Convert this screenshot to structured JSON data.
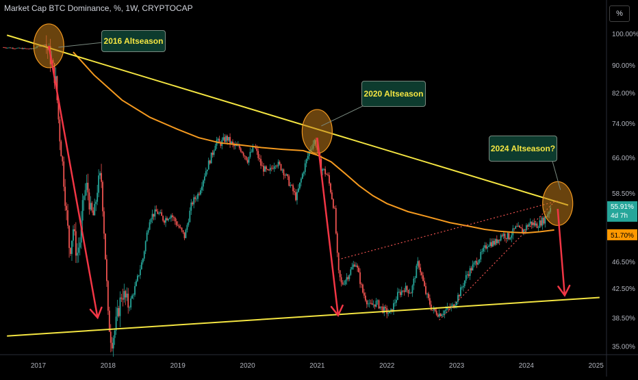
{
  "header": {
    "title": "Market Cap BTC Dominance, %, 1W, CRYPTOCAP",
    "unit_button": "%"
  },
  "colors": {
    "background": "#000000",
    "candle_up": "#26a69a",
    "candle_down": "#ef5350",
    "trendline": "#f5e642",
    "moving_average": "#f59a1f",
    "arrow": "#f23645",
    "circle_fill": "#c07a1a",
    "callout_bg": "#0d3b2e",
    "callout_text": "#f5e642",
    "current_badge": "#26a69a",
    "ma_badge": "#ff9800"
  },
  "annotations": {
    "callout_2016": "2016 Altseason",
    "callout_2020": "2020 Altseason",
    "callout_2024": "2024 Altseason?"
  },
  "badges": {
    "current_price": "55.91%",
    "countdown": "4d 7h",
    "ma_value": "51.70%"
  },
  "chart_data": {
    "type": "candlestick",
    "title": "Market Cap BTC Dominance, %, 1W, CRYPTOCAP",
    "x_axis_ticks": [
      "2017",
      "2018",
      "2019",
      "2020",
      "2021",
      "2022",
      "2023",
      "2024",
      "2025"
    ],
    "y_axis_ticks": [
      "100.00%",
      "90.00%",
      "82.00%",
      "74.00%",
      "66.00%",
      "58.50%",
      "46.50%",
      "42.50%",
      "38.50%",
      "35.00%"
    ],
    "y_scale": "log",
    "xlim": [
      2016.45,
      2025.15
    ],
    "ylim": [
      34.0,
      105.0
    ],
    "series": [
      {
        "name": "BTC Dominance",
        "type": "close",
        "x": [
          2016.5,
          2016.7,
          2016.9,
          2017.0,
          2017.1,
          2017.15,
          2017.2,
          2017.25,
          2017.3,
          2017.35,
          2017.4,
          2017.45,
          2017.5,
          2017.55,
          2017.6,
          2017.65,
          2017.7,
          2017.75,
          2017.8,
          2017.85,
          2017.9,
          2017.95,
          2018.0,
          2018.05,
          2018.1,
          2018.2,
          2018.3,
          2018.4,
          2018.5,
          2018.6,
          2018.7,
          2018.8,
          2018.9,
          2019.0,
          2019.1,
          2019.2,
          2019.3,
          2019.4,
          2019.5,
          2019.55,
          2019.6,
          2019.7,
          2019.8,
          2019.9,
          2020.0,
          2020.1,
          2020.2,
          2020.3,
          2020.4,
          2020.5,
          2020.6,
          2020.7,
          2020.8,
          2020.9,
          2020.97,
          2021.05,
          2021.15,
          2021.25,
          2021.3,
          2021.35,
          2021.45,
          2021.55,
          2021.65,
          2021.75,
          2021.85,
          2021.95,
          2022.05,
          2022.15,
          2022.25,
          2022.35,
          2022.45,
          2022.55,
          2022.65,
          2022.75,
          2022.85,
          2022.95,
          2023.05,
          2023.15,
          2023.25,
          2023.35,
          2023.45,
          2023.55,
          2023.65,
          2023.75,
          2023.85,
          2023.95,
          2024.05,
          2024.15,
          2024.25,
          2024.3,
          2024.35
        ],
        "values": [
          95.5,
          95.2,
          95.0,
          95.8,
          96.5,
          94.0,
          90.0,
          85.0,
          72.0,
          64.0,
          55.0,
          48.0,
          52.0,
          47.5,
          50.0,
          58.0,
          60.0,
          55.0,
          54.0,
          60.0,
          62.0,
          50.0,
          38.5,
          35.5,
          37.0,
          42.0,
          40.0,
          43.0,
          47.0,
          54.0,
          55.0,
          53.5,
          54.5,
          52.5,
          50.5,
          56.5,
          58.5,
          63.0,
          67.0,
          70.0,
          69.0,
          70.5,
          68.5,
          68.0,
          65.5,
          68.5,
          64.0,
          62.5,
          65.0,
          63.5,
          60.5,
          57.5,
          63.0,
          68.0,
          70.0,
          64.0,
          62.0,
          55.0,
          45.0,
          43.0,
          44.5,
          46.5,
          42.0,
          40.0,
          40.5,
          39.5,
          39.0,
          41.5,
          42.5,
          42.0,
          46.5,
          42.0,
          39.5,
          39.0,
          39.5,
          40.0,
          42.0,
          44.5,
          46.0,
          47.5,
          49.5,
          49.5,
          51.0,
          50.5,
          52.0,
          51.5,
          53.0,
          52.5,
          53.5,
          54.5,
          55.91
        ]
      },
      {
        "name": "Moving Average",
        "type": "line",
        "x": [
          2017.5,
          2017.8,
          2018.2,
          2018.6,
          2019.0,
          2019.3,
          2019.6,
          2019.9,
          2020.2,
          2020.5,
          2020.8,
          2021.0,
          2021.2,
          2021.4,
          2021.6,
          2021.8,
          2022.0,
          2022.3,
          2022.6,
          2022.9,
          2023.2,
          2023.4,
          2023.6,
          2023.8,
          2024.0,
          2024.2,
          2024.4
        ],
        "values": [
          94.0,
          87.0,
          80.0,
          75.5,
          72.5,
          70.5,
          69.3,
          68.8,
          68.2,
          67.8,
          67.5,
          66.5,
          65.0,
          62.5,
          60.0,
          58.0,
          56.5,
          55.0,
          54.0,
          53.0,
          52.3,
          51.8,
          51.5,
          51.3,
          51.2,
          51.4,
          51.7
        ]
      }
    ],
    "trendlines": [
      {
        "name": "upper-resistance",
        "from": [
          2016.55,
          99.5
        ],
        "to": [
          2024.6,
          56.2
        ]
      },
      {
        "name": "lower-support",
        "from": [
          2016.55,
          36.2
        ],
        "to": [
          2025.05,
          41.2
        ]
      },
      {
        "name": "dotted-channel-upper",
        "from": [
          2021.3,
          46.8
        ],
        "to": [
          2024.45,
          57.0
        ]
      },
      {
        "name": "dotted-channel-lower",
        "from": [
          2022.75,
          38.2
        ],
        "to": [
          2024.4,
          56.8
        ]
      }
    ],
    "arrows": [
      {
        "from": [
          2017.15,
          96.0
        ],
        "to": [
          2017.85,
          38.5
        ]
      },
      {
        "from": [
          2021.0,
          70.5
        ],
        "to": [
          2021.3,
          38.8
        ]
      },
      {
        "from": [
          2024.45,
          55.5
        ],
        "to": [
          2024.55,
          41.5
        ]
      }
    ],
    "highlight_circles": [
      {
        "at": [
          2017.15,
          96.0
        ]
      },
      {
        "at": [
          2021.0,
          72.0
        ]
      },
      {
        "at": [
          2024.45,
          56.5
        ]
      }
    ]
  }
}
